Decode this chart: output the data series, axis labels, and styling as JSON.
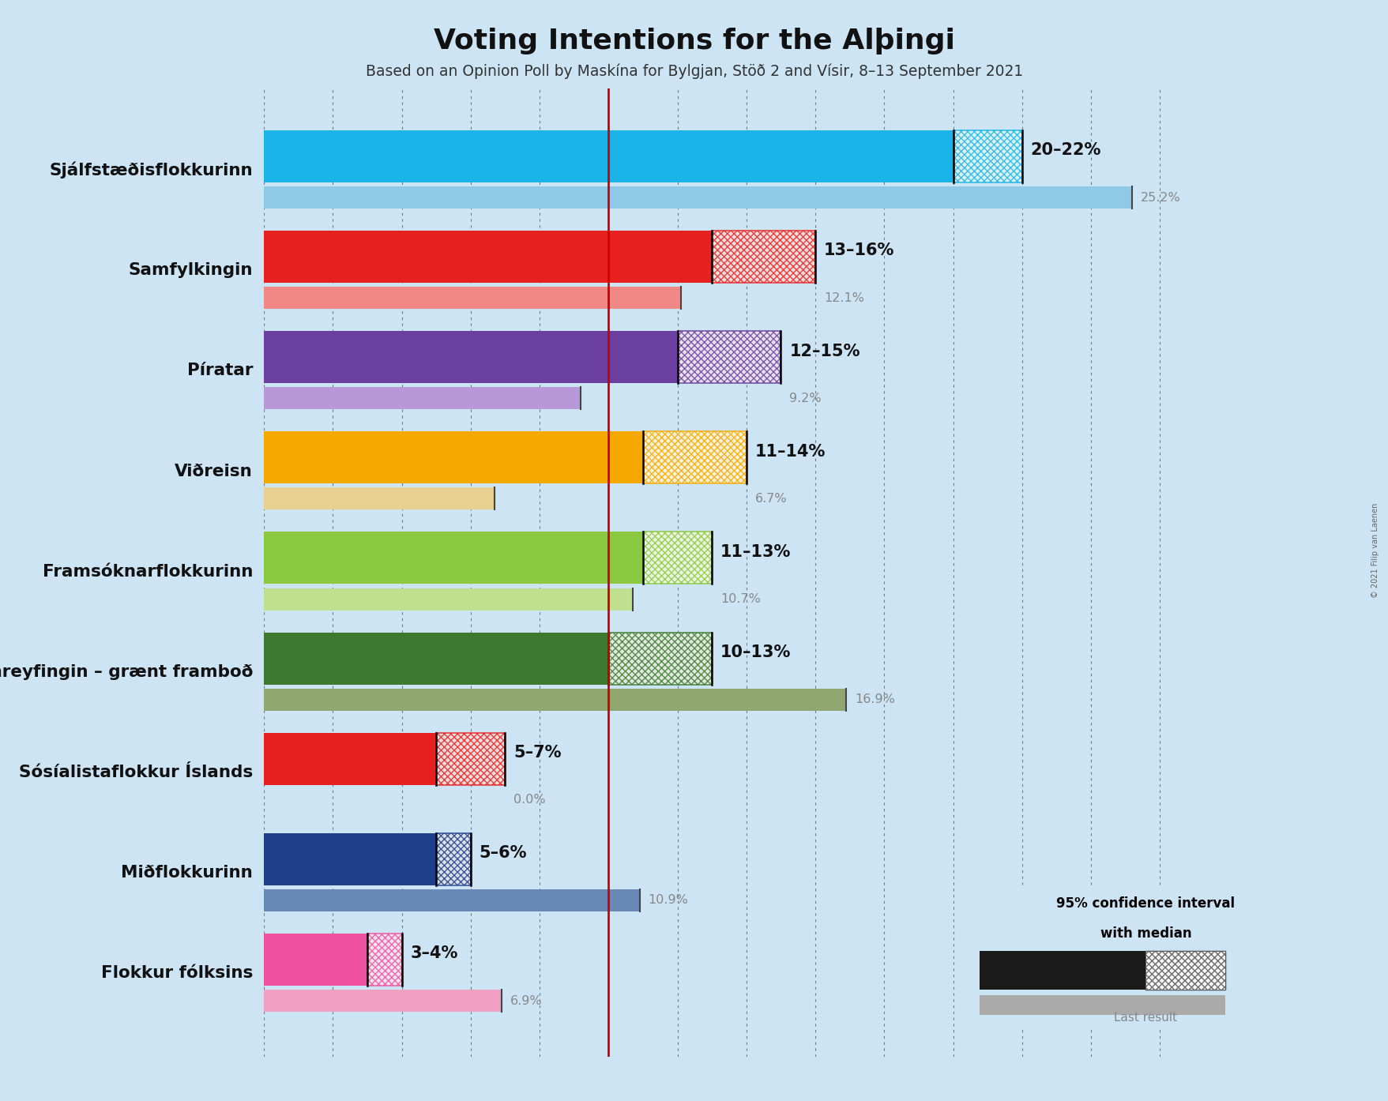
{
  "title": "Voting Intentions for the Alþingi",
  "subtitle": "Based on an Opinion Poll by Maskína for Bylgjan, Stöð 2 and Vísir, 8–13 September 2021",
  "background_color": "#cce4f4",
  "parties": [
    "Sjálfstæðisflokkurinn",
    "Samfylkingin",
    "Píratar",
    "Viðreisn",
    "Framsóknarflokkurinn",
    "Vinstrihreyfingin – grænt framboð",
    "Sósíalistaflokkur Íslands",
    "Miðflokkurinn",
    "Flokkur fólksins"
  ],
  "colors": [
    "#1ab4e8",
    "#e82020",
    "#6b3fa0",
    "#f5a800",
    "#8ac840",
    "#3d7a30",
    "#e82020",
    "#1e3f8c",
    "#f050a0"
  ],
  "last_result_colors": [
    "#90c8e8",
    "#f08888",
    "#b898d8",
    "#e8d090",
    "#c0e090",
    "#90a870",
    "#f09090",
    "#6888b8",
    "#f0a0c0"
  ],
  "ci_low": [
    20,
    13,
    12,
    11,
    11,
    10,
    5,
    5,
    3
  ],
  "ci_high": [
    22,
    16,
    15,
    14,
    13,
    13,
    7,
    6,
    4
  ],
  "last_result": [
    25.2,
    12.1,
    9.2,
    6.7,
    10.7,
    16.9,
    0.0,
    10.9,
    6.9
  ],
  "labels": [
    "20–22%",
    "13–16%",
    "12–15%",
    "11–14%",
    "11–13%",
    "10–13%",
    "5–7%",
    "5–6%",
    "3–4%"
  ],
  "last_result_labels": [
    "25.2%",
    "12.1%",
    "9.2%",
    "6.7%",
    "10.7%",
    "16.9%",
    "0.0%",
    "10.9%",
    "6.9%"
  ],
  "red_line_x": 10.0,
  "axis_max": 27,
  "copyright": "© 2021 Filip van Laenen"
}
